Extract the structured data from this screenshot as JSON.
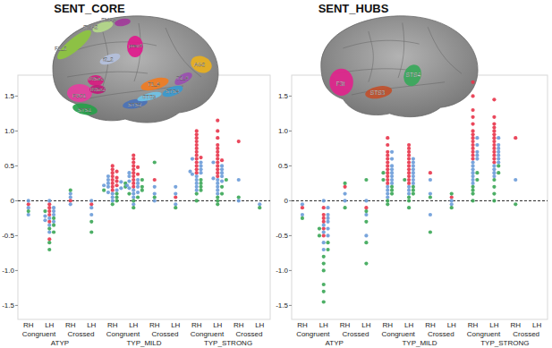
{
  "chart_data": [
    {
      "type": "scatter",
      "title": "SENT_CORE",
      "categories": [
        "RH",
        "LH",
        "RH",
        "LH",
        "RH",
        "LH",
        "RH",
        "LH",
        "RH",
        "LH",
        "RH",
        "LH"
      ],
      "subgroups": [
        "Congruent",
        "Crossed",
        "Congruent",
        "Crossed",
        "Congruent",
        "Crossed"
      ],
      "groups": [
        "ATYP",
        "TYP_MILD",
        "TYP_STRONG"
      ],
      "ylim": [
        -1.7,
        1.8
      ],
      "yticks": [
        -1.5,
        {
          "value": -1.0,
          "label": "-1.0"
        },
        -0.5,
        0,
        0.5,
        {
          "value": 1.0,
          "label": "1.0"
        },
        1.5
      ],
      "reference_line": 0,
      "brain_regions": [
        {
          "label": "F1_2",
          "color": "#8dc63f"
        },
        {
          "label": "SMA2",
          "color": "#b5d98a"
        },
        {
          "label": "SMA3",
          "color": "#a23a9a"
        },
        {
          "label": "prec4",
          "color": "#e0198c"
        },
        {
          "label": "f2_2",
          "color": "#b4c0dc"
        },
        {
          "label": "AG2",
          "color": "#e8b020"
        },
        {
          "label": "F3O1",
          "color": "#e53ea0"
        },
        {
          "label": "INSa3",
          "color": "#d81b80"
        },
        {
          "label": "INSa2",
          "color": "#c2187a"
        },
        {
          "label": "STS1",
          "color": "#27a04a"
        },
        {
          "label": "STS2",
          "color": "#4a72b8"
        },
        {
          "label": "T1_4",
          "color": "#f07c22"
        },
        {
          "label": "STS3",
          "color": "#6fc4e8"
        },
        {
          "label": "STS4",
          "color": "#3a9ad0"
        },
        {
          "label": "T2_4",
          "color": "#9a4fb0"
        }
      ],
      "series": [
        {
          "color": "#e8344a",
          "values": [
            [
              -0.05
            ],
            [
              -0.1,
              -0.15,
              -0.2,
              -0.05,
              -0.3,
              -0.55
            ],
            [
              0.0
            ],
            [
              -0.05
            ],
            [
              0.2,
              0.25,
              0.3,
              0.35,
              0.4,
              0.45,
              0.5,
              0.15,
              0.28,
              0.33,
              0.42,
              0.22
            ],
            [
              0.2,
              0.3,
              0.35,
              0.4,
              0.45,
              0.5,
              0.55,
              0.6,
              0.25,
              0.38,
              0.48,
              0.65
            ],
            [
              0.3
            ],
            [
              0.05
            ],
            [
              0.5,
              0.6,
              0.7,
              0.8,
              0.9,
              1.0,
              0.45,
              0.55,
              0.65,
              0.75,
              0.85,
              0.95,
              0.4,
              0.62
            ],
            [
              0.4,
              0.5,
              0.6,
              0.7,
              0.8,
              0.9,
              1.0,
              1.15,
              0.45,
              0.55,
              0.65,
              0.75,
              0.35,
              0.58
            ],
            [
              0.85
            ],
            []
          ]
        },
        {
          "color": "#6a9bd8",
          "values": [
            [
              -0.1,
              -0.2,
              0.0
            ],
            [
              -0.1,
              -0.2,
              -0.25,
              -0.3,
              -0.35,
              -0.15,
              -0.45,
              0.0,
              -0.22,
              -0.28
            ],
            [
              0.1,
              0.05,
              -0.05
            ],
            [
              -0.2,
              -0.1,
              0.0
            ],
            [
              0.1,
              0.15,
              0.2,
              0.25,
              0.3,
              0.05,
              0.18,
              0.22,
              0.27,
              0.12,
              0.35,
              0.0
            ],
            [
              0.05,
              0.1,
              0.15,
              0.2,
              0.25,
              0.3,
              0.35,
              0.12,
              0.18,
              0.22,
              0.28,
              0.4,
              -0.05
            ],
            [
              0.1,
              0.2,
              0.0
            ],
            [
              0.1,
              -0.05,
              0.2
            ],
            [
              0.2,
              0.3,
              0.35,
              0.4,
              0.45,
              0.5,
              0.25,
              0.38,
              0.42,
              0.55,
              0.15,
              0.6
            ],
            [
              0.15,
              0.2,
              0.25,
              0.3,
              0.35,
              0.4,
              0.45,
              0.28,
              0.32,
              0.5,
              0.1,
              0.55
            ],
            [
              0.3,
              0.0
            ],
            [
              -0.05
            ]
          ]
        },
        {
          "color": "#3aa655",
          "values": [
            [
              -0.15
            ],
            [
              -0.25,
              -0.35,
              -0.45,
              -0.6,
              -0.7,
              -0.4,
              -0.15
            ],
            [
              0.15
            ],
            [
              -0.3,
              -0.45
            ],
            [
              0.05,
              0.1,
              0.15,
              0.2,
              0.0,
              0.25,
              -0.05
            ],
            [
              0.0,
              0.1,
              0.15,
              0.05,
              -0.1,
              0.2,
              0.3
            ],
            [
              0.05,
              0.55
            ],
            [
              -0.1
            ],
            [
              0.1,
              0.2,
              0.3,
              0.0,
              0.15,
              0.25
            ],
            [
              0.05,
              0.1,
              0.2,
              0.3,
              0.0,
              -0.05
            ],
            [
              0.05
            ],
            [
              -0.1
            ]
          ]
        }
      ]
    },
    {
      "type": "scatter",
      "title": "SENT_HUBS",
      "categories": [
        "RH",
        "LH",
        "RH",
        "LH",
        "RH",
        "LH",
        "RH",
        "LH",
        "RH",
        "LH",
        "RH",
        "LH"
      ],
      "subgroups": [
        "Congruent",
        "Crossed",
        "Congruent",
        "Crossed",
        "Congruent",
        "Crossed"
      ],
      "groups": [
        "ATYP",
        "TYP_MILD",
        "TYP_STRONG"
      ],
      "ylim": [
        -1.7,
        1.8
      ],
      "yticks": [
        -1.5,
        {
          "value": -1.0,
          "label": "-1.0"
        },
        -0.5,
        0,
        0.5,
        {
          "value": 1.0,
          "label": "1.0"
        },
        1.5
      ],
      "reference_line": 0,
      "brain_regions": [
        {
          "label": "F3t",
          "color": "#e0248c"
        },
        {
          "label": "STS3",
          "color": "#c0502d"
        },
        {
          "label": "STS4",
          "color": "#38a85a"
        }
      ],
      "series": [
        {
          "color": "#e8344a",
          "values": [
            [
              -0.1
            ],
            [
              -0.1,
              -0.2,
              -0.3,
              -0.4,
              -0.5,
              -0.25
            ],
            [
              0.2
            ],
            [
              -0.1
            ],
            [
              0.3,
              0.4,
              0.5,
              0.6,
              0.7,
              0.8,
              0.35,
              0.45,
              0.55,
              0.65,
              0.9,
              0.25
            ],
            [
              0.3,
              0.4,
              0.5,
              0.6,
              0.7,
              0.8,
              0.45,
              0.55,
              0.35,
              0.65,
              0.75,
              0.25
            ],
            [
              0.4
            ],
            [
              0.05
            ],
            [
              0.6,
              0.7,
              0.8,
              0.9,
              1.0,
              1.1,
              1.2,
              1.3,
              1.5,
              0.65,
              0.75,
              0.85,
              0.95,
              1.7
            ],
            [
              0.6,
              0.7,
              0.8,
              0.9,
              1.0,
              1.1,
              1.2,
              0.75,
              0.85,
              0.95,
              1.05,
              1.45,
              0.65,
              0.55
            ],
            [
              0.9
            ],
            []
          ]
        },
        {
          "color": "#6a9bd8",
          "values": [
            [
              -0.05,
              -0.2
            ],
            [
              -0.1,
              -0.2,
              -0.3,
              -0.35,
              -0.4,
              -0.5,
              -0.6,
              -0.25,
              -0.45,
              0.0,
              -0.7
            ],
            [
              0.1,
              0.0
            ],
            [
              -0.2,
              0.0,
              -0.5
            ],
            [
              0.1,
              0.2,
              0.3,
              0.4,
              0.5,
              0.15,
              0.25,
              0.35,
              0.45,
              0.05,
              0.6,
              0.7
            ],
            [
              0.1,
              0.2,
              0.3,
              0.4,
              0.5,
              0.25,
              0.35,
              0.45,
              0.15,
              0.55,
              0.6
            ],
            [
              0.1,
              -0.2,
              0.3
            ],
            [
              0.0,
              -0.05
            ],
            [
              0.3,
              0.4,
              0.5,
              0.6,
              0.7,
              0.35,
              0.45,
              0.55,
              0.65,
              0.8,
              0.9,
              0.25
            ],
            [
              0.4,
              0.5,
              0.6,
              0.7,
              0.55,
              0.65,
              0.45,
              0.75,
              0.8,
              0.35,
              0.9
            ],
            [
              0.3
            ],
            []
          ]
        },
        {
          "color": "#3aa655",
          "values": [
            [
              -0.25
            ],
            [
              -0.5,
              -0.7,
              -0.9,
              -1.0,
              -1.2,
              -1.3,
              -1.45,
              -0.6,
              -0.8,
              -0.4
            ],
            [
              0.25,
              -0.1
            ],
            [
              -0.3,
              -0.6,
              -0.9,
              0.3,
              -0.15
            ],
            [
              0.0,
              0.1,
              0.2,
              0.3,
              -0.05,
              0.15,
              0.4
            ],
            [
              0.0,
              0.1,
              0.2,
              0.05,
              0.15,
              -0.1,
              0.3
            ],
            [
              -0.45,
              0.05
            ],
            [
              -0.1,
              0.1
            ],
            [
              0.1,
              0.2,
              0.3,
              0.0,
              0.15,
              0.4
            ],
            [
              0.2,
              0.3,
              0.1,
              0.4,
              0.5,
              0.0
            ],
            [
              -0.05
            ],
            []
          ]
        }
      ]
    }
  ]
}
